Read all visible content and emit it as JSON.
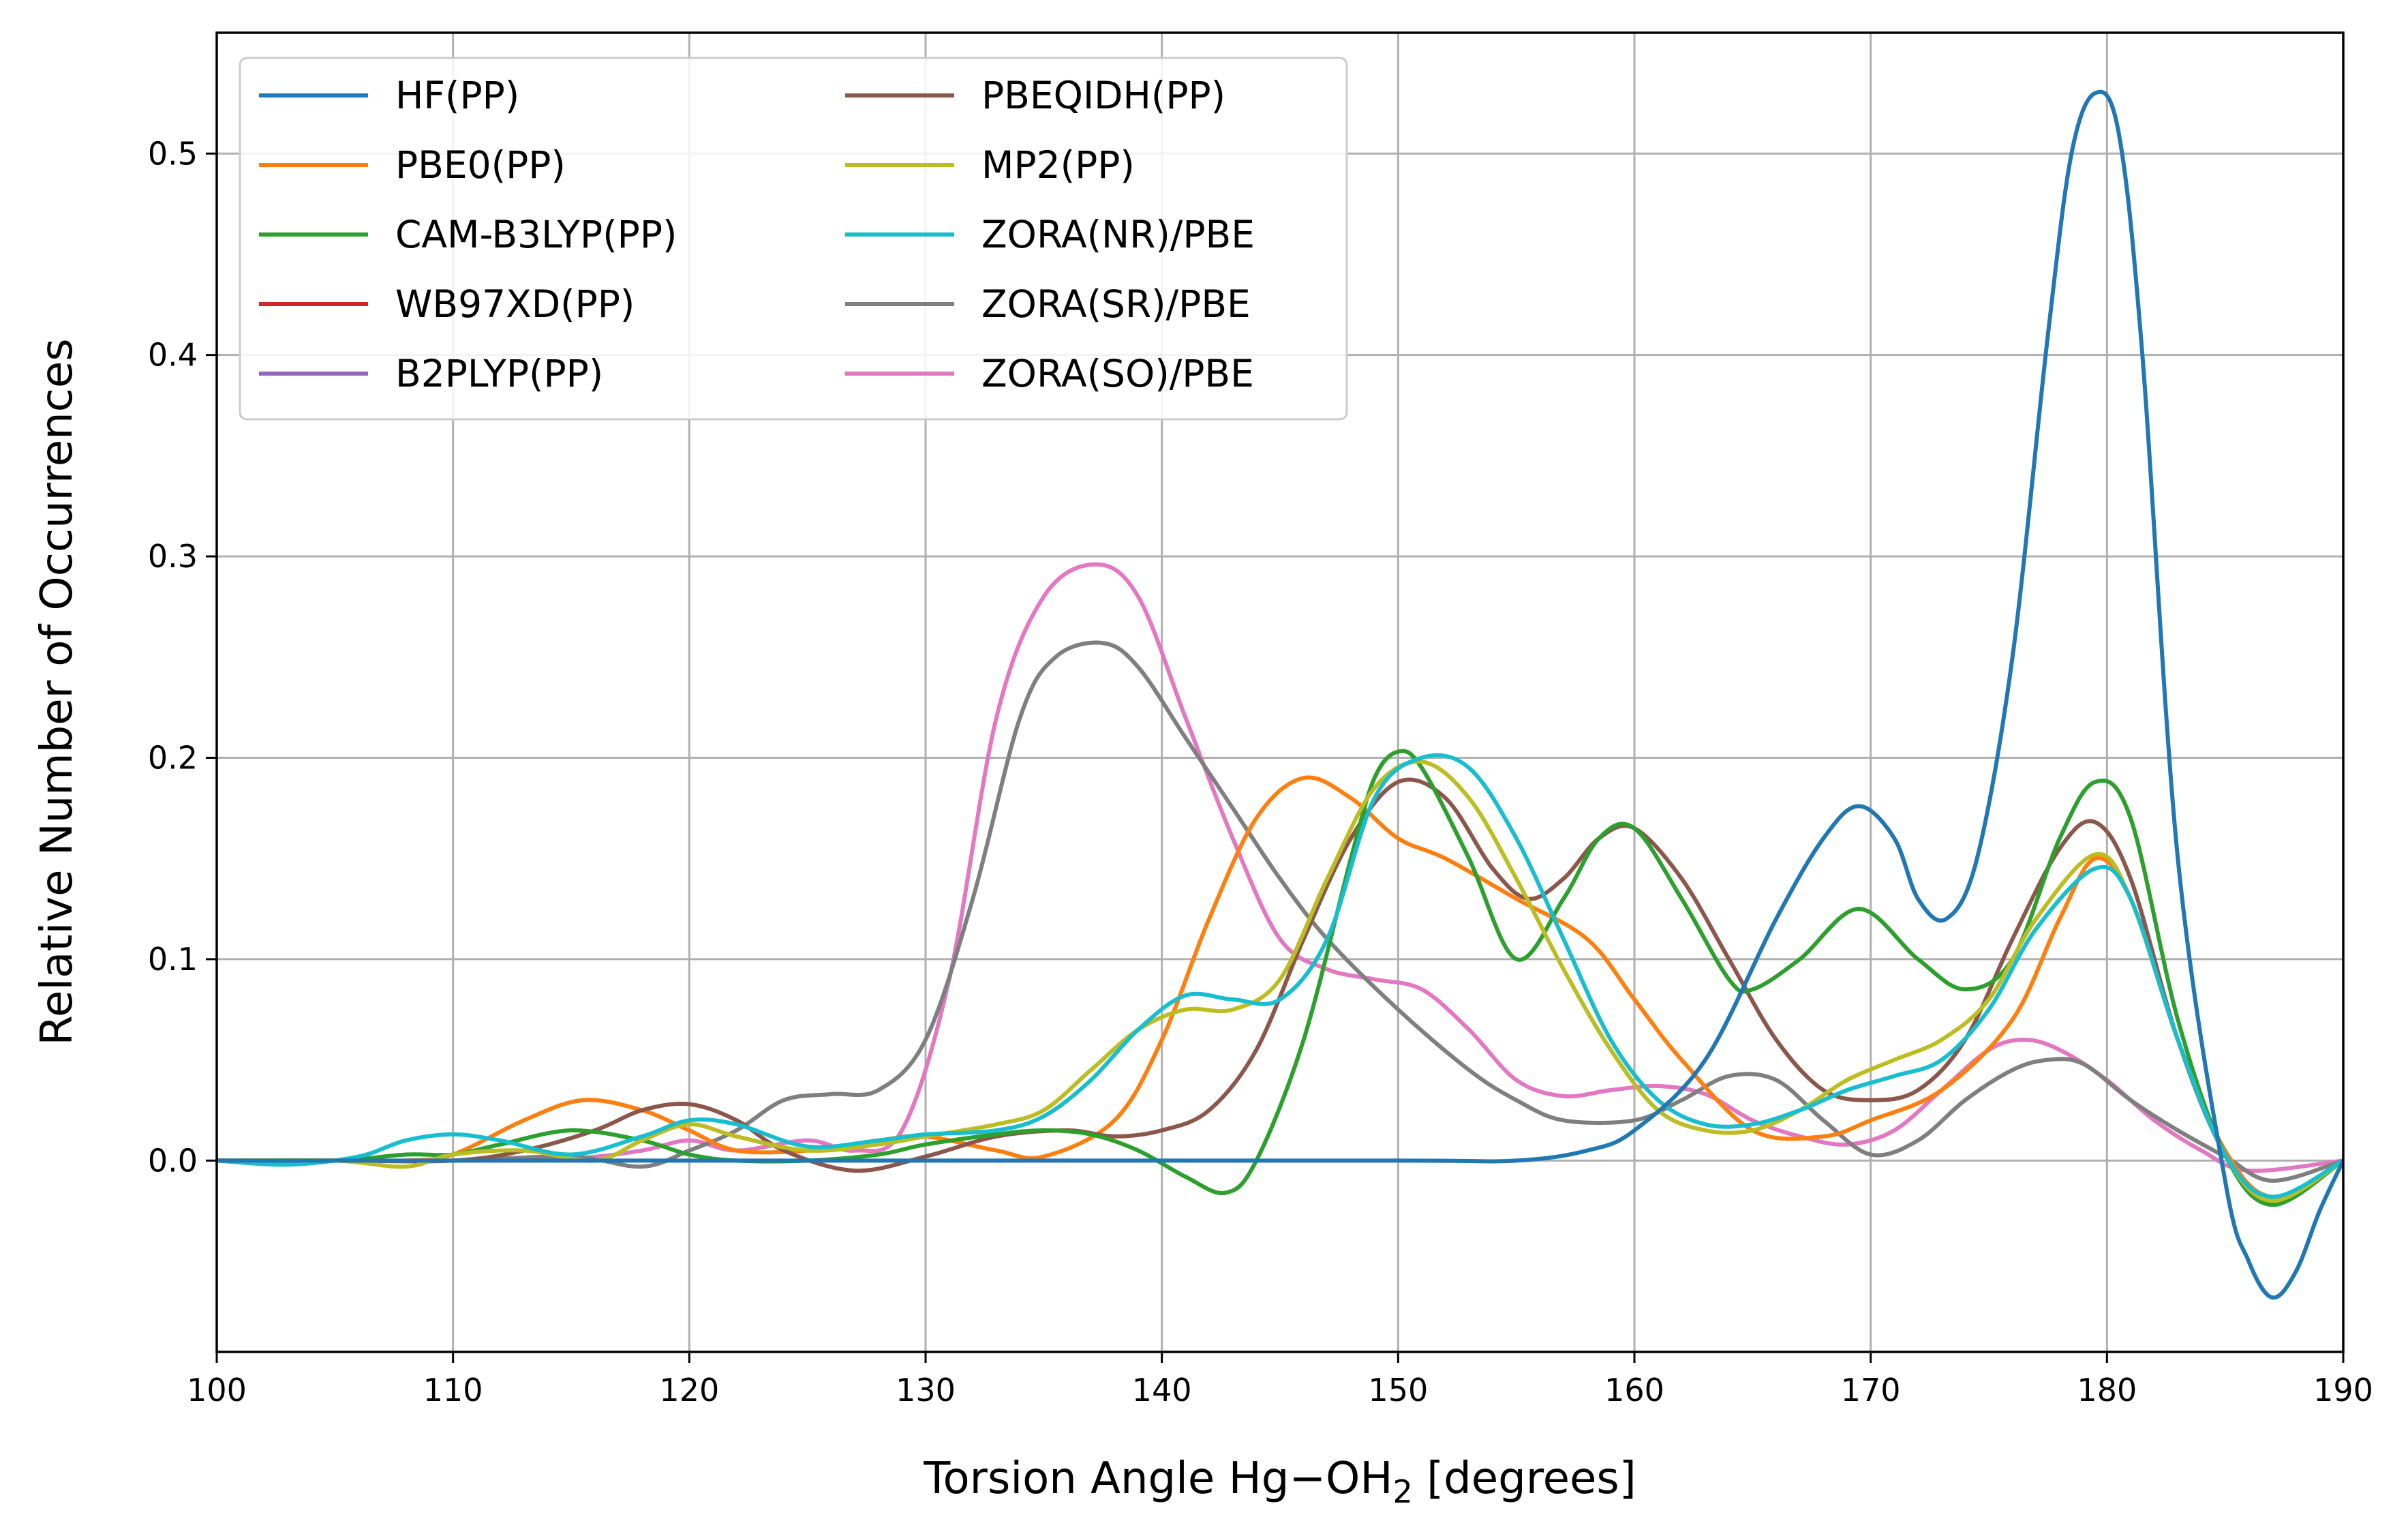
{
  "chart_data": {
    "type": "line",
    "title": "",
    "xlabel": "Torsion Angle Hg−OH",
    "xlabel_subscript": "2",
    "xlabel_suffix": " [degrees]",
    "ylabel": "Relative Number of Occurrences",
    "xlim": [
      100,
      190
    ],
    "ylim": [
      -0.095,
      0.56
    ],
    "xticks": [
      100,
      110,
      120,
      130,
      140,
      150,
      160,
      170,
      180,
      190
    ],
    "yticks": [
      0.0,
      0.1,
      0.2,
      0.3,
      0.4,
      0.5
    ],
    "xtick_labels": [
      "100",
      "110",
      "120",
      "130",
      "140",
      "150",
      "160",
      "170",
      "180",
      "190"
    ],
    "ytick_labels": [
      "0.0",
      "0.1",
      "0.2",
      "0.3",
      "0.4",
      "0.5"
    ],
    "grid": true,
    "legend_position": "top-left",
    "legend_columns": 2,
    "series": [
      {
        "name": "HF(PP)",
        "color": "#1f77b4",
        "x": [
          100,
          130,
          150,
          155,
          158,
          160,
          163,
          166,
          168,
          169.5,
          171,
          172,
          173.2,
          174.5,
          176,
          177.5,
          178.5,
          179.5,
          180.5,
          181.5,
          183,
          185,
          186,
          187,
          188,
          189,
          190
        ],
        "y": [
          0,
          0,
          0,
          0,
          0.005,
          0.015,
          0.05,
          0.12,
          0.16,
          0.176,
          0.16,
          0.13,
          0.12,
          0.15,
          0.25,
          0.41,
          0.5,
          0.53,
          0.51,
          0.4,
          0.15,
          -0.01,
          -0.05,
          -0.068,
          -0.055,
          -0.025,
          0
        ]
      },
      {
        "name": "PBE0(PP)",
        "color": "#ff7f0e",
        "x": [
          100,
          105,
          108,
          110,
          113,
          115.5,
          118,
          120,
          122,
          125,
          128,
          130,
          133,
          135,
          138,
          140,
          142,
          144,
          146,
          148,
          150,
          152,
          155,
          158,
          160,
          162,
          165,
          168,
          170,
          173,
          176,
          178,
          179.5,
          181,
          183,
          185,
          187,
          190
        ],
        "y": [
          0,
          0,
          0,
          0.003,
          0.02,
          0.03,
          0.025,
          0.015,
          0.005,
          0.005,
          0.01,
          0.012,
          0.005,
          0.002,
          0.02,
          0.06,
          0.12,
          0.17,
          0.19,
          0.18,
          0.16,
          0.15,
          0.13,
          0.11,
          0.08,
          0.05,
          0.015,
          0.012,
          0.02,
          0.035,
          0.07,
          0.12,
          0.15,
          0.13,
          0.06,
          0.005,
          -0.018,
          0
        ]
      },
      {
        "name": "CAM-B3LYP(PP)",
        "color": "#2ca02c",
        "x": [
          100,
          105,
          108,
          110,
          112,
          115,
          118,
          120,
          122,
          125,
          128,
          130,
          133,
          135,
          137,
          139,
          141,
          142.7,
          144,
          146,
          148,
          149,
          150,
          151,
          153,
          155,
          157,
          158.5,
          160,
          162,
          164,
          165,
          167,
          169.5,
          172,
          174,
          176,
          178,
          179.5,
          181,
          183,
          185,
          187,
          190
        ],
        "y": [
          0,
          0,
          0.003,
          0.003,
          0.008,
          0.015,
          0.01,
          0.003,
          0,
          0,
          0.003,
          0.008,
          0.013,
          0.015,
          0.013,
          0.005,
          -0.008,
          -0.016,
          0,
          0.06,
          0.15,
          0.19,
          0.203,
          0.195,
          0.15,
          0.1,
          0.13,
          0.16,
          0.165,
          0.13,
          0.09,
          0.085,
          0.1,
          0.125,
          0.1,
          0.085,
          0.1,
          0.16,
          0.188,
          0.17,
          0.07,
          0.003,
          -0.022,
          0
        ]
      },
      {
        "name": "WB97XD(PP)",
        "color": "#d62728",
        "x": [],
        "y": []
      },
      {
        "name": "B2PLYP(PP)",
        "color": "#9467bd",
        "x": [],
        "y": []
      },
      {
        "name": "PBEQIDH(PP)",
        "color": "#8c564b",
        "x": [
          100,
          105,
          110,
          113,
          116,
          118,
          120,
          122,
          124,
          127,
          130,
          133,
          136,
          138,
          140,
          142,
          144,
          146,
          148,
          150,
          152,
          154,
          155.5,
          157,
          158.5,
          160,
          162,
          164,
          166,
          168,
          170,
          172,
          174,
          176,
          178,
          179.5,
          181,
          183,
          185,
          187,
          190
        ],
        "y": [
          0,
          0,
          0,
          0.005,
          0.015,
          0.025,
          0.028,
          0.02,
          0.005,
          -0.005,
          0.002,
          0.012,
          0.015,
          0.012,
          0.015,
          0.025,
          0.055,
          0.11,
          0.16,
          0.188,
          0.18,
          0.145,
          0.13,
          0.14,
          0.16,
          0.165,
          0.14,
          0.1,
          0.06,
          0.035,
          0.03,
          0.035,
          0.06,
          0.11,
          0.155,
          0.168,
          0.14,
          0.06,
          0.003,
          -0.02,
          0
        ]
      },
      {
        "name": "MP2(PP)",
        "color": "#bcbd22",
        "x": [
          100,
          105,
          108,
          110,
          113,
          116,
          118,
          120,
          122,
          125,
          128,
          130,
          133,
          135,
          137,
          139,
          141,
          143,
          145,
          147,
          149,
          151,
          153,
          155,
          157,
          159,
          161,
          163,
          165,
          167,
          169,
          171,
          173,
          175,
          177,
          179.5,
          181,
          183,
          185,
          187,
          190
        ],
        "y": [
          0,
          0,
          -0.003,
          0.003,
          0.005,
          0,
          0.01,
          0.018,
          0.012,
          0.005,
          0.008,
          0.012,
          0.018,
          0.025,
          0.045,
          0.065,
          0.075,
          0.075,
          0.09,
          0.14,
          0.185,
          0.198,
          0.18,
          0.14,
          0.095,
          0.055,
          0.025,
          0.015,
          0.015,
          0.025,
          0.04,
          0.05,
          0.06,
          0.08,
          0.12,
          0.152,
          0.13,
          0.06,
          0.003,
          -0.02,
          0
        ]
      },
      {
        "name": "ZORA(NR)/PBE",
        "color": "#17becf",
        "x": [
          100,
          103,
          106,
          108,
          110,
          112,
          115,
          118,
          120,
          122,
          125,
          128,
          130,
          133,
          135,
          137,
          139,
          141,
          143,
          145,
          147,
          149,
          151,
          153,
          155,
          157,
          159,
          161,
          163,
          165,
          167,
          169,
          171,
          173,
          175,
          177,
          179.5,
          181,
          183,
          185,
          187,
          190
        ],
        "y": [
          0,
          -0.002,
          0.002,
          0.01,
          0.013,
          0.01,
          0.003,
          0.012,
          0.02,
          0.018,
          0.007,
          0.01,
          0.013,
          0.015,
          0.022,
          0.04,
          0.065,
          0.082,
          0.08,
          0.08,
          0.11,
          0.18,
          0.2,
          0.195,
          0.16,
          0.11,
          0.06,
          0.03,
          0.018,
          0.018,
          0.025,
          0.035,
          0.042,
          0.05,
          0.075,
          0.115,
          0.145,
          0.13,
          0.06,
          0.003,
          -0.018,
          0
        ]
      },
      {
        "name": "ZORA(SR)/PBE",
        "color": "#7f7f7f",
        "x": [
          100,
          105,
          110,
          115,
          118,
          120,
          122,
          124,
          126,
          128,
          130,
          132,
          134,
          135.5,
          137.5,
          139,
          141,
          143,
          145,
          147,
          150,
          153,
          155,
          157,
          160,
          162,
          164,
          166,
          168,
          170,
          172,
          174,
          176,
          177.5,
          179,
          181,
          183,
          185,
          187,
          190
        ],
        "y": [
          0,
          0,
          0,
          0.002,
          -0.003,
          0.005,
          0.015,
          0.03,
          0.033,
          0.035,
          0.06,
          0.13,
          0.22,
          0.25,
          0.257,
          0.245,
          0.21,
          0.175,
          0.14,
          0.11,
          0.075,
          0.045,
          0.03,
          0.02,
          0.02,
          0.03,
          0.042,
          0.04,
          0.02,
          0.003,
          0.01,
          0.03,
          0.045,
          0.05,
          0.048,
          0.03,
          0.015,
          0.002,
          -0.01,
          0
        ]
      },
      {
        "name": "ZORA(SO)/PBE",
        "color": "#e377c2",
        "x": [
          100,
          105,
          110,
          115,
          118,
          120,
          122,
          125,
          127,
          129,
          131,
          133,
          135,
          137.2,
          139,
          141,
          143,
          145,
          147,
          149,
          151,
          153,
          155,
          157,
          159,
          161,
          163,
          165,
          167,
          169,
          171,
          173,
          175,
          176.5,
          178,
          180,
          182,
          184,
          186,
          190
        ],
        "y": [
          0,
          0,
          0,
          0.001,
          0.005,
          0.01,
          0.005,
          0.01,
          0.005,
          0.015,
          0.09,
          0.22,
          0.28,
          0.296,
          0.28,
          0.22,
          0.16,
          0.11,
          0.095,
          0.09,
          0.085,
          0.065,
          0.04,
          0.032,
          0.035,
          0.037,
          0.033,
          0.02,
          0.012,
          0.008,
          0.015,
          0.035,
          0.055,
          0.06,
          0.055,
          0.04,
          0.02,
          0.005,
          -0.005,
          0
        ]
      }
    ]
  }
}
